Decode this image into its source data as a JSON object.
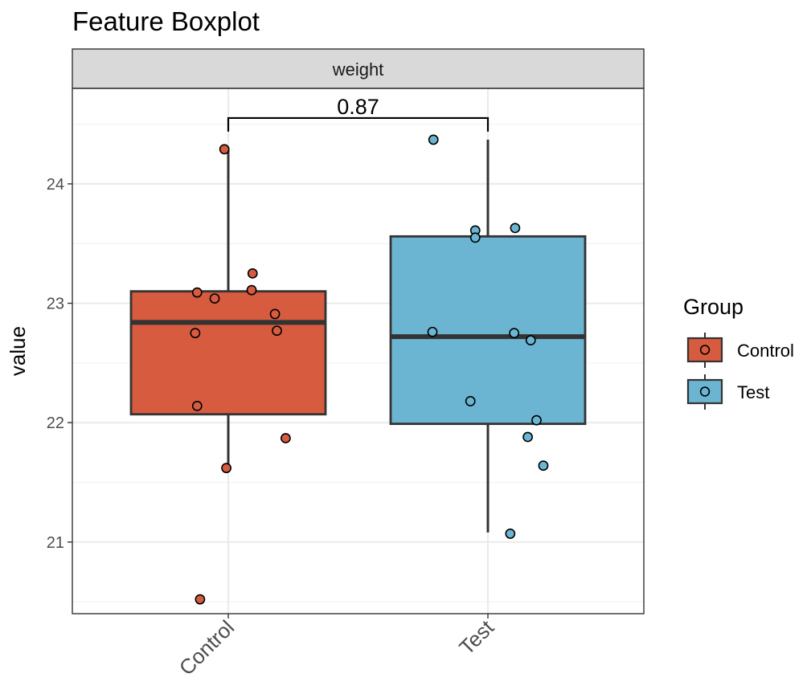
{
  "chart_data": {
    "type": "boxplot",
    "title": "Feature Boxplot",
    "facet_label": "weight",
    "xlabel": "",
    "ylabel": "value",
    "ylim": [
      20.4,
      24.8
    ],
    "yticks": [
      21,
      22,
      23,
      24
    ],
    "ytick_labels": [
      "21",
      "22",
      "23",
      "24"
    ],
    "categories": [
      "Control",
      "Test"
    ],
    "legend": {
      "title": "Group",
      "position": "right",
      "entries": [
        "Control",
        "Test"
      ]
    },
    "colors": {
      "Control": "#D65B3F",
      "Test": "#6BB5D2"
    },
    "comparison": {
      "groups": [
        "Control",
        "Test"
      ],
      "label": "0.87"
    },
    "groups": [
      {
        "name": "Control",
        "whisker_low": 21.62,
        "q1": 22.07,
        "median": 22.84,
        "q3": 23.1,
        "whisker_high": 24.29,
        "points": [
          {
            "offset": -0.04,
            "y": 24.29
          },
          {
            "offset": 0.25,
            "y": 23.25
          },
          {
            "offset": -0.32,
            "y": 23.09
          },
          {
            "offset": -0.14,
            "y": 23.04
          },
          {
            "offset": 0.24,
            "y": 23.11
          },
          {
            "offset": 0.48,
            "y": 22.91
          },
          {
            "offset": 0.5,
            "y": 22.77
          },
          {
            "offset": -0.34,
            "y": 22.75
          },
          {
            "offset": -0.32,
            "y": 22.14
          },
          {
            "offset": 0.59,
            "y": 21.87
          },
          {
            "offset": -0.02,
            "y": 21.62
          },
          {
            "offset": -0.29,
            "y": 20.52
          }
        ]
      },
      {
        "name": "Test",
        "whisker_low": 21.08,
        "q1": 21.99,
        "median": 22.72,
        "q3": 23.56,
        "whisker_high": 24.37,
        "points": [
          {
            "offset": -0.56,
            "y": 24.37
          },
          {
            "offset": -0.13,
            "y": 23.61
          },
          {
            "offset": -0.13,
            "y": 23.55
          },
          {
            "offset": 0.28,
            "y": 23.63
          },
          {
            "offset": -0.57,
            "y": 22.76
          },
          {
            "offset": 0.27,
            "y": 22.75
          },
          {
            "offset": 0.44,
            "y": 22.69
          },
          {
            "offset": -0.18,
            "y": 22.18
          },
          {
            "offset": 0.5,
            "y": 22.02
          },
          {
            "offset": 0.41,
            "y": 21.88
          },
          {
            "offset": 0.57,
            "y": 21.64
          },
          {
            "offset": 0.23,
            "y": 21.07
          }
        ]
      }
    ]
  }
}
